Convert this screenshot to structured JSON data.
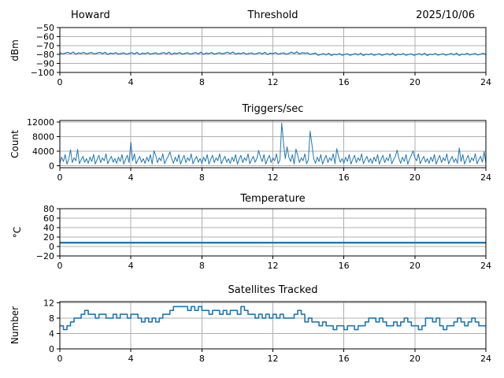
{
  "colors": {
    "line": "#1f77b4",
    "grid": "#b0b0b0",
    "spine": "#000000",
    "background": "#ffffff",
    "text": "#000000"
  },
  "chart_data": [
    {
      "type": "line",
      "title": "Threshold",
      "title_left": "Howard",
      "title_right": "2025/10/06",
      "ylabel": "dBm",
      "xlim": [
        0,
        24
      ],
      "ylim": [
        -100,
        -50
      ],
      "grid": true,
      "legend": "none",
      "xticks": [
        {
          "v": 0,
          "label": "0"
        },
        {
          "v": 4,
          "label": "4"
        },
        {
          "v": 8,
          "label": "8"
        },
        {
          "v": 12,
          "label": "12"
        },
        {
          "v": 16,
          "label": "16"
        },
        {
          "v": 20,
          "label": "20"
        },
        {
          "v": 24,
          "label": "24"
        }
      ],
      "yticks": [
        {
          "v": -50,
          "label": "−50"
        },
        {
          "v": -60,
          "label": "−60"
        },
        {
          "v": -70,
          "label": "−70"
        },
        {
          "v": -80,
          "label": "−80"
        },
        {
          "v": -90,
          "label": "−90"
        },
        {
          "v": -100,
          "label": "−100"
        }
      ],
      "step": false,
      "line_width": 1.3,
      "series": {
        "x0": 0,
        "dx": 0.15,
        "values": [
          -77.9,
          -79.4,
          -78.5,
          -77.6,
          -79.1,
          -77.3,
          -79.7,
          -78.2,
          -78.8,
          -77.6,
          -79.4,
          -78.5,
          -77.9,
          -79.4,
          -78.5,
          -77.6,
          -79.1,
          -77.6,
          -80.0,
          -78.5,
          -79.1,
          -77.9,
          -79.7,
          -78.8,
          -78.2,
          -79.7,
          -78.8,
          -77.9,
          -79.4,
          -77.6,
          -80.0,
          -78.5,
          -79.1,
          -77.9,
          -79.7,
          -78.8,
          -78.2,
          -79.6,
          -78.7,
          -77.8,
          -79.3,
          -77.5,
          -79.9,
          -78.4,
          -79.0,
          -77.8,
          -79.6,
          -78.7,
          -78.1,
          -79.6,
          -78.7,
          -77.8,
          -79.3,
          -77.5,
          -79.9,
          -78.4,
          -79.0,
          -77.8,
          -79.6,
          -78.7,
          -78.1,
          -79.3,
          -78.4,
          -77.5,
          -79.0,
          -77.2,
          -79.6,
          -78.5,
          -79.1,
          -77.9,
          -79.7,
          -78.8,
          -78.2,
          -79.7,
          -78.8,
          -77.9,
          -79.4,
          -77.6,
          -80.0,
          -78.5,
          -79.1,
          -77.9,
          -79.7,
          -78.8,
          -78.2,
          -79.7,
          -78.8,
          -77.4,
          -78.9,
          -77.1,
          -79.5,
          -78.0,
          -78.6,
          -78.2,
          -80.0,
          -79.1,
          -78.5,
          -80.8,
          -79.9,
          -79.0,
          -80.5,
          -78.7,
          -81.1,
          -79.6,
          -80.2,
          -79.0,
          -80.8,
          -79.9,
          -79.3,
          -80.8,
          -79.9,
          -79.0,
          -80.5,
          -78.7,
          -81.1,
          -79.6,
          -80.2,
          -79.0,
          -80.8,
          -79.9,
          -79.3,
          -80.8,
          -79.9,
          -79.0,
          -80.5,
          -78.7,
          -81.1,
          -79.6,
          -80.2,
          -79.0,
          -80.8,
          -79.9,
          -79.3,
          -80.8,
          -79.9,
          -79.0,
          -80.5,
          -78.7,
          -81.1,
          -79.6,
          -80.2,
          -78.9,
          -80.7,
          -79.8,
          -79.2,
          -80.7,
          -79.8,
          -78.9,
          -80.4,
          -78.6,
          -81.0,
          -79.5,
          -80.1,
          -78.7,
          -80.5,
          -79.6,
          -79.0,
          -80.5,
          -79.6,
          -78.7,
          -80.2
        ]
      }
    },
    {
      "type": "line",
      "title": "Triggers/sec",
      "ylabel": "Count",
      "xlim": [
        0,
        24
      ],
      "ylim": [
        -500,
        12400
      ],
      "grid": true,
      "legend": "none",
      "xticks": [
        {
          "v": 0,
          "label": "0"
        },
        {
          "v": 4,
          "label": "4"
        },
        {
          "v": 8,
          "label": "8"
        },
        {
          "v": 12,
          "label": "12"
        },
        {
          "v": 16,
          "label": "16"
        },
        {
          "v": 20,
          "label": "20"
        },
        {
          "v": 24,
          "label": "24"
        }
      ],
      "yticks": [
        {
          "v": 0,
          "label": "0"
        },
        {
          "v": 4000,
          "label": "4000"
        },
        {
          "v": 8000,
          "label": "8000"
        },
        {
          "v": 12000,
          "label": "12000"
        }
      ],
      "step": false,
      "line_width": 1,
      "series": {
        "x0": 0,
        "dx": 0.1,
        "values": [
          700,
          2400,
          1200,
          3100,
          500,
          1800,
          4400,
          900,
          2200,
          1400,
          4500,
          600,
          1700,
          2600,
          1000,
          2000,
          700,
          2400,
          1200,
          3100,
          500,
          1800,
          2900,
          900,
          2200,
          1400,
          3300,
          600,
          1700,
          2600,
          1000,
          2000,
          700,
          2400,
          1200,
          3100,
          500,
          1800,
          2900,
          900,
          6500,
          1400,
          3300,
          600,
          1700,
          2600,
          1000,
          2000,
          700,
          2400,
          1200,
          3100,
          500,
          4100,
          2900,
          900,
          2200,
          1400,
          3300,
          600,
          1700,
          2600,
          3800,
          2000,
          700,
          2400,
          1200,
          3100,
          500,
          1800,
          2900,
          900,
          2200,
          1400,
          3300,
          600,
          1700,
          2600,
          1000,
          2000,
          700,
          2400,
          1200,
          3100,
          500,
          1800,
          2900,
          900,
          2200,
          1400,
          3300,
          600,
          1700,
          2600,
          1000,
          2000,
          700,
          2400,
          1200,
          3100,
          500,
          1800,
          2900,
          900,
          2200,
          1400,
          3300,
          600,
          1700,
          2600,
          1000,
          2000,
          4200,
          2400,
          1200,
          3100,
          500,
          1800,
          2900,
          900,
          2200,
          1400,
          3300,
          600,
          1700,
          11700,
          6200,
          2000,
          5200,
          2400,
          1200,
          3100,
          500,
          4600,
          2900,
          900,
          2200,
          1400,
          3300,
          600,
          1700,
          9500,
          5800,
          2000,
          700,
          2400,
          1200,
          3100,
          500,
          1800,
          2900,
          900,
          2200,
          1400,
          3300,
          600,
          4700,
          2600,
          1000,
          2000,
          700,
          2400,
          1200,
          3100,
          500,
          1800,
          2900,
          900,
          2200,
          1400,
          3300,
          600,
          1700,
          2600,
          1000,
          2000,
          700,
          2400,
          1200,
          3100,
          500,
          1800,
          2900,
          900,
          2200,
          1400,
          3300,
          600,
          1700,
          2600,
          4300,
          2000,
          700,
          2400,
          1200,
          3100,
          500,
          1800,
          2900,
          4100,
          2200,
          1400,
          3300,
          600,
          1700,
          2600,
          1000,
          2000,
          700,
          2400,
          1200,
          3100,
          500,
          1800,
          2900,
          900,
          2200,
          1400,
          3300,
          600,
          1700,
          2600,
          1000,
          2000,
          700,
          4900,
          1200,
          3100,
          500,
          1800,
          2900,
          900,
          2200,
          1400,
          3300,
          600,
          1700,
          2600,
          1000,
          3900,
          700
        ]
      }
    },
    {
      "type": "line",
      "title": "Temperature",
      "ylabel": "°C",
      "xlim": [
        0,
        24
      ],
      "ylim": [
        -20,
        80
      ],
      "grid": true,
      "legend": "none",
      "xticks": [
        {
          "v": 0,
          "label": "0"
        },
        {
          "v": 4,
          "label": "4"
        },
        {
          "v": 8,
          "label": "8"
        },
        {
          "v": 12,
          "label": "12"
        },
        {
          "v": 16,
          "label": "16"
        },
        {
          "v": 20,
          "label": "20"
        },
        {
          "v": 24,
          "label": "24"
        }
      ],
      "yticks": [
        {
          "v": -20,
          "label": "−20"
        },
        {
          "v": 0,
          "label": "0"
        },
        {
          "v": 20,
          "label": "20"
        },
        {
          "v": 40,
          "label": "40"
        },
        {
          "v": 60,
          "label": "60"
        },
        {
          "v": 80,
          "label": "80"
        }
      ],
      "step": false,
      "line_width": 2.4,
      "series": {
        "x0": 0,
        "dx": 2,
        "values": [
          8,
          8,
          8,
          8,
          8,
          8,
          8,
          8,
          8,
          8,
          8,
          8,
          8
        ]
      }
    },
    {
      "type": "line",
      "title": "Satellites Tracked",
      "ylabel": "Number",
      "xlim": [
        0,
        24
      ],
      "ylim": [
        0,
        12.3
      ],
      "grid": true,
      "legend": "none",
      "xticks": [
        {
          "v": 0,
          "label": "0"
        },
        {
          "v": 4,
          "label": "4"
        },
        {
          "v": 8,
          "label": "8"
        },
        {
          "v": 12,
          "label": "12"
        },
        {
          "v": 16,
          "label": "16"
        },
        {
          "v": 20,
          "label": "20"
        },
        {
          "v": 24,
          "label": "24"
        }
      ],
      "yticks": [
        {
          "v": 0,
          "label": "0"
        },
        {
          "v": 4,
          "label": "4"
        },
        {
          "v": 8,
          "label": "8"
        },
        {
          "v": 12,
          "label": "12"
        }
      ],
      "step": true,
      "line_width": 1.6,
      "series": {
        "x0": 0,
        "dx": 0.2,
        "values": [
          6,
          5,
          6,
          7,
          8,
          8,
          9,
          10,
          9,
          9,
          8,
          9,
          9,
          8,
          8,
          9,
          8,
          9,
          9,
          8,
          9,
          9,
          8,
          7,
          8,
          7,
          8,
          7,
          8,
          9,
          9,
          10,
          11,
          11,
          11,
          11,
          10,
          11,
          10,
          11,
          10,
          10,
          9,
          10,
          10,
          9,
          10,
          9,
          10,
          10,
          9,
          11,
          10,
          9,
          9,
          8,
          9,
          8,
          9,
          8,
          9,
          8,
          9,
          8,
          8,
          8,
          9,
          10,
          9,
          7,
          8,
          7,
          7,
          6,
          7,
          6,
          6,
          5,
          6,
          6,
          5,
          6,
          6,
          5,
          6,
          6,
          7,
          8,
          8,
          7,
          8,
          7,
          6,
          6,
          7,
          6,
          7,
          8,
          7,
          6,
          6,
          5,
          6,
          8,
          8,
          7,
          8,
          6,
          5,
          6,
          6,
          7,
          8,
          7,
          6,
          7,
          8,
          7,
          6,
          6,
          6
        ]
      }
    }
  ]
}
